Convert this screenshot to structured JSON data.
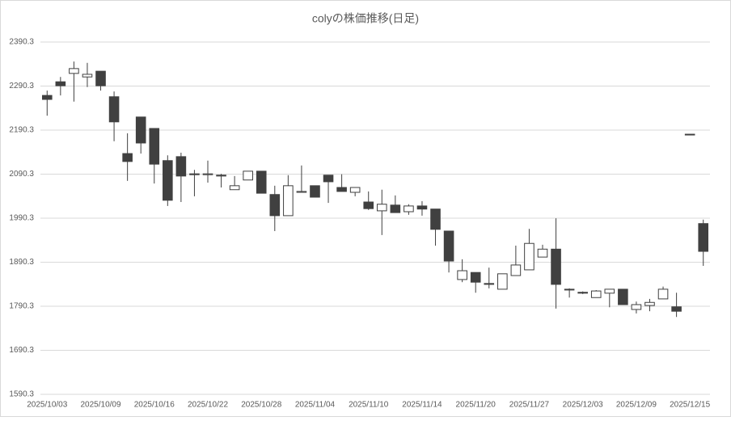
{
  "chart_data": {
    "type": "candlestick",
    "title": "colyの株価推移(日足)",
    "categories": [
      "2025/10/03",
      null,
      null,
      null,
      "2025/10/09",
      null,
      null,
      null,
      "2025/10/16",
      null,
      null,
      null,
      "2025/10/22",
      null,
      null,
      null,
      "2025/10/28",
      null,
      null,
      null,
      "2025/11/04",
      null,
      null,
      null,
      "2025/11/10",
      null,
      null,
      null,
      "2025/11/14",
      null,
      null,
      null,
      "2025/11/20",
      null,
      null,
      null,
      "2025/11/27",
      null,
      null,
      null,
      "2025/12/03",
      null,
      null,
      null,
      "2025/12/09",
      null,
      null,
      null,
      "2025/12/15",
      null
    ],
    "open": [
      2269,
      2300,
      2319,
      2311,
      2324,
      2266,
      2137,
      2220,
      2194,
      2121,
      2130,
      2091,
      2089,
      2088,
      2055,
      2077,
      2097,
      2044,
      1996,
      2049,
      2064,
      2088,
      2060,
      2049,
      2027,
      2007,
      2020,
      2005,
      2018,
      2011,
      1961,
      1851,
      1867,
      1842,
      1829,
      1860,
      1873,
      1902,
      1920,
      1829,
      1822,
      1810,
      1820,
      1829,
      1783,
      1792,
      1807,
      1789,
      2181,
      1978
    ],
    "high": [
      2280,
      2311,
      2346,
      2343,
      2324,
      2278,
      2183,
      2220,
      2194,
      2133,
      2139,
      2100,
      2121,
      2091,
      2086,
      2097,
      2097,
      2064,
      2088,
      2110,
      2064,
      2088,
      2090,
      2060,
      2051,
      2055,
      2042,
      2022,
      2029,
      2011,
      1961,
      1897,
      1867,
      1878,
      1864,
      1928,
      1966,
      1930,
      1990,
      1831,
      1824,
      1827,
      1829,
      1829,
      1801,
      1807,
      1835,
      1821,
      2181,
      1987
    ],
    "low": [
      2223,
      2269,
      2255,
      2288,
      2280,
      2165,
      2075,
      2137,
      2069,
      2018,
      2027,
      2040,
      2071,
      2060,
      2055,
      2077,
      2047,
      1961,
      1996,
      2049,
      2038,
      2025,
      2051,
      2040,
      2009,
      1952,
      2003,
      1998,
      1996,
      1928,
      1867,
      1845,
      1821,
      1831,
      1829,
      1860,
      1873,
      1902,
      1785,
      1810,
      1818,
      1810,
      1788,
      1794,
      1774,
      1779,
      1807,
      1766,
      2180,
      1882
    ],
    "close": [
      2260,
      2291,
      2330,
      2317,
      2291,
      2209,
      2119,
      2161,
      2113,
      2031,
      2086,
      2089,
      2091,
      2086,
      2064,
      2097,
      2047,
      1996,
      2064,
      2051,
      2038,
      2073,
      2051,
      2060,
      2012,
      2022,
      2003,
      2018,
      2011,
      1965,
      1893,
      1871,
      1845,
      1840,
      1864,
      1884,
      1933,
      1920,
      1840,
      1828,
      1820,
      1825,
      1829,
      1794,
      1794,
      1799,
      1829,
      1779,
      2180,
      1915
    ],
    "up_color": "#ffffff",
    "down_color": "#404040",
    "edge_color": "#404040",
    "ylim": [
      1590.3,
      2390.3
    ],
    "yticks": [
      1590.3,
      1690.3,
      1790.3,
      1890.3,
      1990.3,
      2090.3,
      2190.3,
      2290.3,
      2390.3
    ],
    "grid": true
  }
}
